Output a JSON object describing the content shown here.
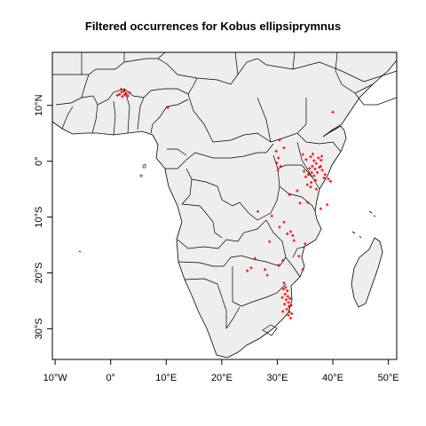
{
  "title": "Filtered occurrences for Kobus ellipsiprymnus",
  "colors": {
    "land": "#eeeeee",
    "border": "#000000",
    "points": "#ff0000",
    "background": "#ffffff"
  },
  "chart_data": {
    "type": "scatter",
    "projection": "longitude/latitude map",
    "xlim": [
      -10.5,
      51.5
    ],
    "ylim": [
      -35.5,
      19.5
    ],
    "x_ticks": [
      {
        "value": -10,
        "label": "10°W"
      },
      {
        "value": 0,
        "label": "0°"
      },
      {
        "value": 10,
        "label": "10°E"
      },
      {
        "value": 20,
        "label": "20°E"
      },
      {
        "value": 30,
        "label": "30°E"
      },
      {
        "value": 40,
        "label": "40°E"
      },
      {
        "value": 50,
        "label": "50°E"
      }
    ],
    "y_ticks": [
      {
        "value": 10,
        "label": "10°N"
      },
      {
        "value": 0,
        "label": "0°"
      },
      {
        "value": -10,
        "label": "10°S"
      },
      {
        "value": -20,
        "label": "20°S"
      },
      {
        "value": -30,
        "label": "30°S"
      }
    ],
    "occurrences": [
      {
        "x": 1.2,
        "y": 11.8
      },
      {
        "x": 1.6,
        "y": 12.0
      },
      {
        "x": 2.0,
        "y": 12.4
      },
      {
        "x": 2.4,
        "y": 12.6
      },
      {
        "x": 2.1,
        "y": 11.6
      },
      {
        "x": 2.8,
        "y": 12.1
      },
      {
        "x": 3.1,
        "y": 11.7
      },
      {
        "x": 1.9,
        "y": 12.9
      },
      {
        "x": 3.4,
        "y": 12.3
      },
      {
        "x": 2.5,
        "y": 11.9
      },
      {
        "x": 10.3,
        "y": 9.6
      },
      {
        "x": 40.0,
        "y": 8.8
      },
      {
        "x": 30.4,
        "y": 3.8
      },
      {
        "x": 29.8,
        "y": 1.8
      },
      {
        "x": 30.2,
        "y": 0.6
      },
      {
        "x": 31.2,
        "y": 2.4
      },
      {
        "x": 29.9,
        "y": -0.3
      },
      {
        "x": 30.6,
        "y": -0.9
      },
      {
        "x": 30.1,
        "y": -1.6
      },
      {
        "x": 34.6,
        "y": 1.2
      },
      {
        "x": 35.2,
        "y": 0.3
      },
      {
        "x": 36.0,
        "y": 0.8
      },
      {
        "x": 36.6,
        "y": 0.1
      },
      {
        "x": 37.0,
        "y": -0.4
      },
      {
        "x": 37.4,
        "y": 0.6
      },
      {
        "x": 37.9,
        "y": 0.2
      },
      {
        "x": 36.3,
        "y": -0.9
      },
      {
        "x": 35.8,
        "y": -1.3
      },
      {
        "x": 36.8,
        "y": -1.4
      },
      {
        "x": 37.6,
        "y": -1.1
      },
      {
        "x": 36.2,
        "y": -2.0
      },
      {
        "x": 35.6,
        "y": -2.4
      },
      {
        "x": 36.6,
        "y": -2.6
      },
      {
        "x": 37.2,
        "y": -2.0
      },
      {
        "x": 38.1,
        "y": -1.6
      },
      {
        "x": 38.6,
        "y": -2.4
      },
      {
        "x": 39.2,
        "y": -3.2
      },
      {
        "x": 38.4,
        "y": -3.0
      },
      {
        "x": 39.6,
        "y": -3.6
      },
      {
        "x": 36.9,
        "y": -3.4
      },
      {
        "x": 36.1,
        "y": -3.8
      },
      {
        "x": 35.1,
        "y": -2.8
      },
      {
        "x": 34.8,
        "y": -1.8
      },
      {
        "x": 37.8,
        "y": -0.9
      },
      {
        "x": 38.0,
        "y": 0.9
      },
      {
        "x": 36.4,
        "y": 1.3
      },
      {
        "x": 35.4,
        "y": -4.2
      },
      {
        "x": 36.0,
        "y": -4.6
      },
      {
        "x": 37.0,
        "y": -5.0
      },
      {
        "x": 33.6,
        "y": -5.3
      },
      {
        "x": 32.2,
        "y": -6.0
      },
      {
        "x": 34.1,
        "y": -7.5
      },
      {
        "x": 35.5,
        "y": -7.4
      },
      {
        "x": 39.0,
        "y": -7.8
      },
      {
        "x": 37.8,
        "y": -8.5
      },
      {
        "x": 26.5,
        "y": -9.0
      },
      {
        "x": 29.0,
        "y": -9.8
      },
      {
        "x": 31.2,
        "y": -10.9
      },
      {
        "x": 30.4,
        "y": -11.8
      },
      {
        "x": 32.4,
        "y": -12.6
      },
      {
        "x": 31.8,
        "y": -13.0
      },
      {
        "x": 32.8,
        "y": -13.3
      },
      {
        "x": 28.6,
        "y": -14.4
      },
      {
        "x": 33.0,
        "y": -14.2
      },
      {
        "x": 35.0,
        "y": -14.8
      },
      {
        "x": 33.9,
        "y": -17.0
      },
      {
        "x": 26.0,
        "y": -17.4
      },
      {
        "x": 31.0,
        "y": -17.8
      },
      {
        "x": 25.3,
        "y": -19.1
      },
      {
        "x": 24.6,
        "y": -19.6
      },
      {
        "x": 27.8,
        "y": -19.4
      },
      {
        "x": 28.2,
        "y": -20.4
      },
      {
        "x": 30.2,
        "y": -18.6
      },
      {
        "x": 34.6,
        "y": -19.4
      },
      {
        "x": 31.2,
        "y": -21.8
      },
      {
        "x": 31.5,
        "y": -22.6
      },
      {
        "x": 31.8,
        "y": -23.2
      },
      {
        "x": 31.4,
        "y": -23.8
      },
      {
        "x": 31.9,
        "y": -24.2
      },
      {
        "x": 31.6,
        "y": -24.8
      },
      {
        "x": 32.0,
        "y": -25.3
      },
      {
        "x": 31.3,
        "y": -25.6
      },
      {
        "x": 32.1,
        "y": -26.0
      },
      {
        "x": 31.7,
        "y": -26.5
      },
      {
        "x": 32.2,
        "y": -27.0
      },
      {
        "x": 32.0,
        "y": -27.6
      },
      {
        "x": 32.4,
        "y": -28.1
      },
      {
        "x": 30.9,
        "y": -24.4
      },
      {
        "x": 32.3,
        "y": -24.6
      },
      {
        "x": 31.1,
        "y": -22.9
      },
      {
        "x": 32.5,
        "y": -25.8
      },
      {
        "x": 31.0,
        "y": -26.9
      },
      {
        "x": 32.6,
        "y": -27.3
      }
    ]
  }
}
